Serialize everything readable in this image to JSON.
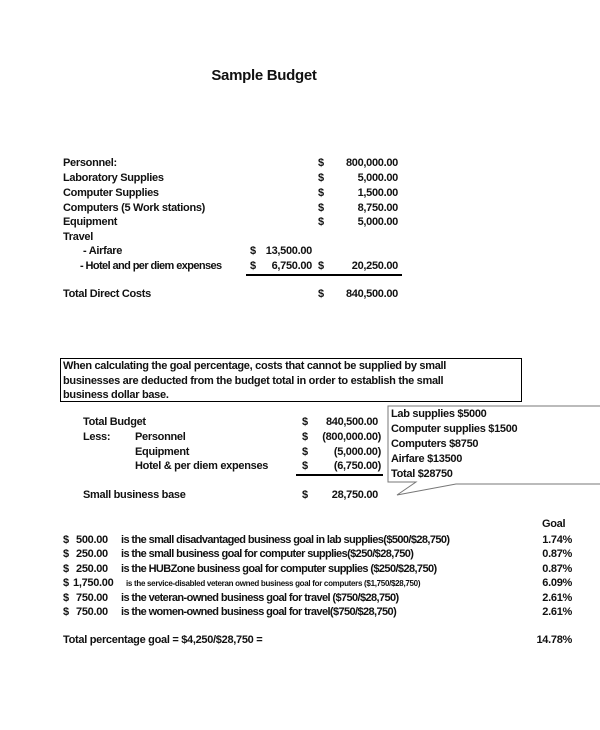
{
  "title": "Sample Budget",
  "direct": [
    {
      "label": "Personnel:",
      "cur": "$",
      "amount": "800,000.00"
    },
    {
      "label": "Laboratory Supplies",
      "cur": "$",
      "amount": "5,000.00"
    },
    {
      "label": "Computer Supplies",
      "cur": "$",
      "amount": "1,500.00"
    },
    {
      "label": "Computers (5 Work stations)",
      "cur": "$",
      "amount": "8,750.00"
    },
    {
      "label": "Equipment",
      "cur": "$",
      "amount": "5,000.00"
    }
  ],
  "travel": {
    "label": "Travel",
    "airfare": {
      "label": "- Airfare",
      "cur": "$",
      "amount": "13,500.00"
    },
    "hotel": {
      "label": "- Hotel and per diem expenses",
      "cur": "$",
      "amount": "6,750.00",
      "cur2": "$",
      "subtotal": "20,250.00"
    }
  },
  "total_direct": {
    "label": "Total Direct Costs",
    "cur": "$",
    "amount": "840,500.00"
  },
  "note": [
    "When calculating the goal percentage, costs that cannot be supplied by small",
    "businesses are deducted from the budget total in order to establish the small",
    "business dollar base."
  ],
  "base": {
    "total_budget": {
      "label": "Total Budget",
      "cur": "$",
      "amount": "840,500.00"
    },
    "less_label": "Less:",
    "less": [
      {
        "label": "Personnel",
        "cur": "$",
        "amount": "(800,000.00)"
      },
      {
        "label": "Equipment",
        "cur": "$",
        "amount": "(5,000.00)"
      },
      {
        "label": "Hotel & per diem expenses",
        "cur": "$",
        "amount": "(6,750.00)"
      }
    ],
    "small_base": {
      "label": "Small business base",
      "cur": "$",
      "amount": "28,750.00"
    }
  },
  "callout": [
    "Lab supplies $5000",
    "Computer supplies $1500",
    "Computers $8750",
    "Airfare $13500",
    "Total $28750"
  ],
  "goals": {
    "header": "Goal",
    "rows": [
      {
        "cur": "$",
        "amount": "500.00",
        "text": "is the small disadvantaged business goal in lab supplies($500/$28,750)",
        "pct": "1.74%"
      },
      {
        "cur": "$",
        "amount": "250.00",
        "text": "is the small business goal for computer supplies($250/$28,750)",
        "pct": "0.87%"
      },
      {
        "cur": "$",
        "amount": "250.00",
        "text": "is the HUBZone business goal for computer supplies ($250/$28,750)",
        "pct": "0.87%"
      },
      {
        "cur": "$",
        "amount": "1,750.00",
        "text": "is the service-disabled veteran owned business goal for computers ($1,750/$28,750)",
        "pct": "6.09%"
      },
      {
        "cur": "$",
        "amount": "750.00",
        "text": "is the veteran-owned business goal for travel ($750/$28,750)",
        "pct": "2.61%"
      },
      {
        "cur": "$",
        "amount": "750.00",
        "text": "is the women-owned business goal for travel($750/$28,750)",
        "pct": "2.61%"
      }
    ],
    "total_label": "Total percentage goal = $4,250/$28,750 =",
    "total_pct": "14.78%"
  }
}
